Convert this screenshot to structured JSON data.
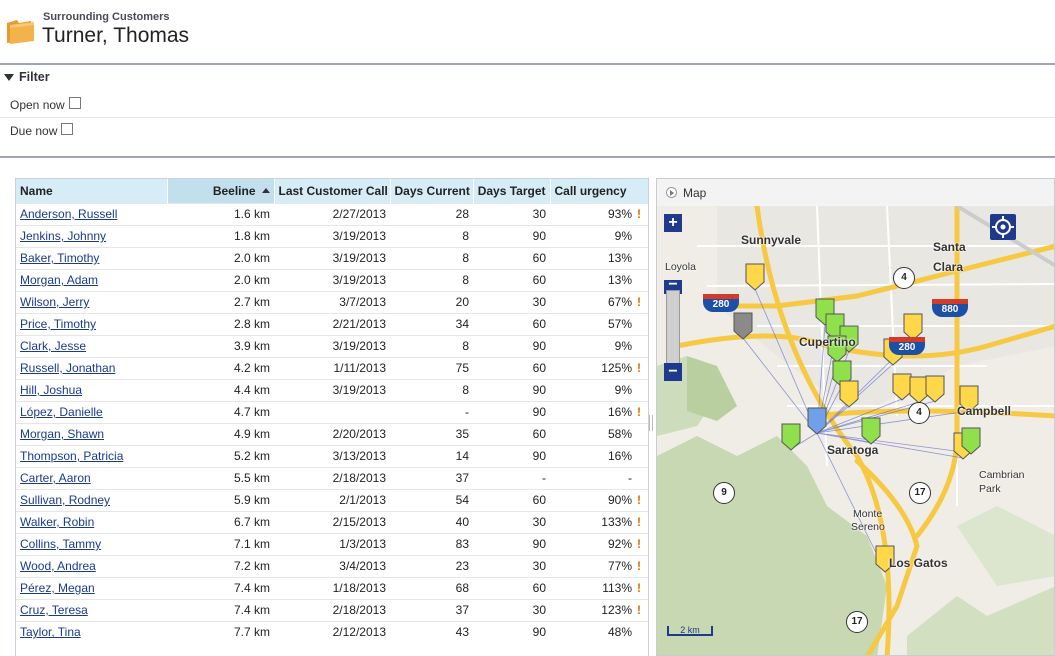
{
  "header": {
    "subtitle": "Surrounding Customers",
    "title": "Turner, Thomas",
    "icon": "folder-icon"
  },
  "filter": {
    "label": "Filter",
    "options": [
      {
        "label": "Open now",
        "checked": false
      },
      {
        "label": "Due now",
        "checked": false
      }
    ]
  },
  "table": {
    "columns": [
      "Name",
      "Beeline",
      "Last Customer Call",
      "Days Current",
      "Days Target",
      "Call urgency"
    ],
    "sorted_column": "Beeline",
    "sort_direction": "ascending",
    "rows": [
      {
        "name": "Anderson, Russell",
        "beeline": "1.6 km",
        "last_call": "2/27/2013",
        "days_current": "28",
        "days_target": "30",
        "urgency": "93%",
        "flag": "!"
      },
      {
        "name": "Jenkins, Johnny",
        "beeline": "1.8 km",
        "last_call": "3/19/2013",
        "days_current": "8",
        "days_target": "90",
        "urgency": "9%",
        "flag": ""
      },
      {
        "name": "Baker, Timothy",
        "beeline": "2.0 km",
        "last_call": "3/19/2013",
        "days_current": "8",
        "days_target": "60",
        "urgency": "13%",
        "flag": ""
      },
      {
        "name": "Morgan, Adam",
        "beeline": "2.0 km",
        "last_call": "3/19/2013",
        "days_current": "8",
        "days_target": "60",
        "urgency": "13%",
        "flag": ""
      },
      {
        "name": "Wilson, Jerry",
        "beeline": "2.7 km",
        "last_call": "3/7/2013",
        "days_current": "20",
        "days_target": "30",
        "urgency": "67%",
        "flag": "!"
      },
      {
        "name": "Price, Timothy",
        "beeline": "2.8 km",
        "last_call": "2/21/2013",
        "days_current": "34",
        "days_target": "60",
        "urgency": "57%",
        "flag": ""
      },
      {
        "name": "Clark, Jesse",
        "beeline": "3.9 km",
        "last_call": "3/19/2013",
        "days_current": "8",
        "days_target": "90",
        "urgency": "9%",
        "flag": ""
      },
      {
        "name": "Russell, Jonathan",
        "beeline": "4.2 km",
        "last_call": "1/11/2013",
        "days_current": "75",
        "days_target": "60",
        "urgency": "125%",
        "flag": "!"
      },
      {
        "name": "Hill, Joshua",
        "beeline": "4.4 km",
        "last_call": "3/19/2013",
        "days_current": "8",
        "days_target": "90",
        "urgency": "9%",
        "flag": ""
      },
      {
        "name": "López, Danielle",
        "beeline": "4.7 km",
        "last_call": "",
        "days_current": "-",
        "days_target": "90",
        "urgency": "16%",
        "flag": "!"
      },
      {
        "name": "Morgan, Shawn",
        "beeline": "4.9 km",
        "last_call": "2/20/2013",
        "days_current": "35",
        "days_target": "60",
        "urgency": "58%",
        "flag": ""
      },
      {
        "name": "Thompson, Patricia",
        "beeline": "5.2 km",
        "last_call": "3/13/2013",
        "days_current": "14",
        "days_target": "90",
        "urgency": "16%",
        "flag": ""
      },
      {
        "name": "Carter, Aaron",
        "beeline": "5.5 km",
        "last_call": "2/18/2013",
        "days_current": "37",
        "days_target": "-",
        "urgency": "-",
        "flag": ""
      },
      {
        "name": "Sullivan, Rodney",
        "beeline": "5.9 km",
        "last_call": "2/1/2013",
        "days_current": "54",
        "days_target": "60",
        "urgency": "90%",
        "flag": "!"
      },
      {
        "name": "Walker, Robin",
        "beeline": "6.7 km",
        "last_call": "2/15/2013",
        "days_current": "40",
        "days_target": "30",
        "urgency": "133%",
        "flag": "!"
      },
      {
        "name": "Collins, Tammy",
        "beeline": "7.1 km",
        "last_call": "1/3/2013",
        "days_current": "83",
        "days_target": "90",
        "urgency": "92%",
        "flag": "!"
      },
      {
        "name": "Wood, Andrea",
        "beeline": "7.2 km",
        "last_call": "3/4/2013",
        "days_current": "23",
        "days_target": "30",
        "urgency": "77%",
        "flag": "!"
      },
      {
        "name": "Pérez, Megan",
        "beeline": "7.4 km",
        "last_call": "1/18/2013",
        "days_current": "68",
        "days_target": "60",
        "urgency": "113%",
        "flag": "!"
      },
      {
        "name": "Cruz, Teresa",
        "beeline": "7.4 km",
        "last_call": "2/18/2013",
        "days_current": "37",
        "days_target": "30",
        "urgency": "123%",
        "flag": "!"
      },
      {
        "name": "Taylor, Tina",
        "beeline": "7.7 km",
        "last_call": "2/12/2013",
        "days_current": "43",
        "days_target": "90",
        "urgency": "48%",
        "flag": ""
      }
    ]
  },
  "map": {
    "title": "Map",
    "scale_label": "2 km",
    "zoom_in": "+",
    "zoom_out": "−",
    "place_labels": [
      "Sunnyvale",
      "Santa",
      "Clara",
      "Loyola",
      "Cupertino",
      "Campbell",
      "Saratoga",
      "Cambrian",
      "Park",
      "Monte",
      "Sereno",
      "Los Gatos"
    ],
    "route_shields": [
      "4",
      "280",
      "880",
      "280",
      "4",
      "9",
      "17",
      "17"
    ],
    "colors": {
      "pin_green": "#8fe04a",
      "pin_yellow": "#ffd84a",
      "pin_gray": "#8a8a8a",
      "pin_blue": "#6fa0e8",
      "freeway": "#ffd24a",
      "accent": "#1f3a8c",
      "urgency_flag": "#e07000"
    }
  }
}
